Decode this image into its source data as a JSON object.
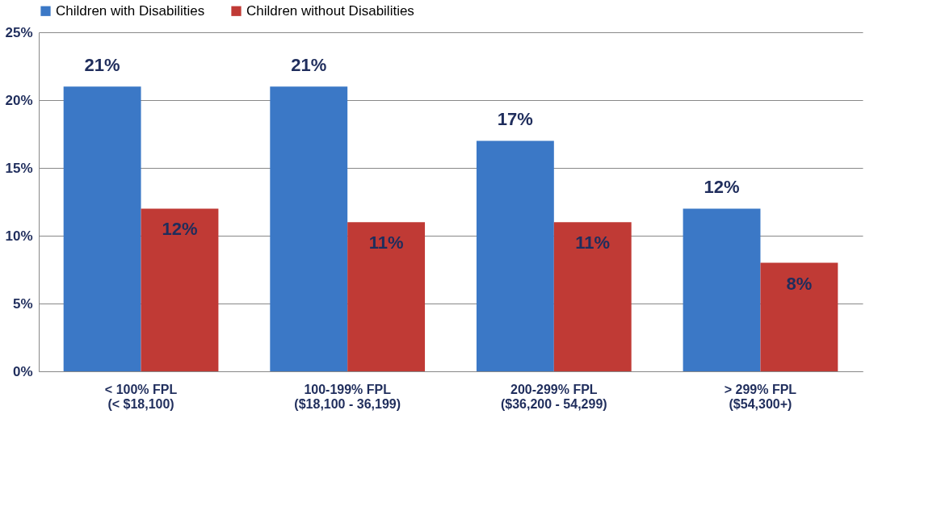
{
  "chart_data": {
    "type": "bar",
    "categories": [
      "< 100% FPL\n(< $18,100)",
      "100-199% FPL\n($18,100 - 36,199)",
      "200-299% FPL\n($36,200 - 54,299)",
      "> 299% FPL\n($54,300+)"
    ],
    "series": [
      {
        "name": "Children with Disabilities",
        "color": "#3b78c6",
        "values": [
          21,
          21,
          17,
          12
        ],
        "value_labels": [
          "21%",
          "21%",
          "17%",
          "12%"
        ]
      },
      {
        "name": "Children without Disabilities",
        "color": "#c03a35",
        "values": [
          12,
          11,
          11,
          8
        ],
        "value_labels": [
          "12%",
          "11%",
          "11%",
          "8%"
        ]
      }
    ],
    "ylim": [
      0,
      25
    ],
    "yticks": [
      {
        "value": 0,
        "label": "0%"
      },
      {
        "value": 5,
        "label": "5%"
      },
      {
        "value": 10,
        "label": "10%"
      },
      {
        "value": 15,
        "label": "15%"
      },
      {
        "value": 20,
        "label": "20%"
      },
      {
        "value": 25,
        "label": "25%"
      }
    ],
    "grid": "y",
    "legend": "top"
  }
}
